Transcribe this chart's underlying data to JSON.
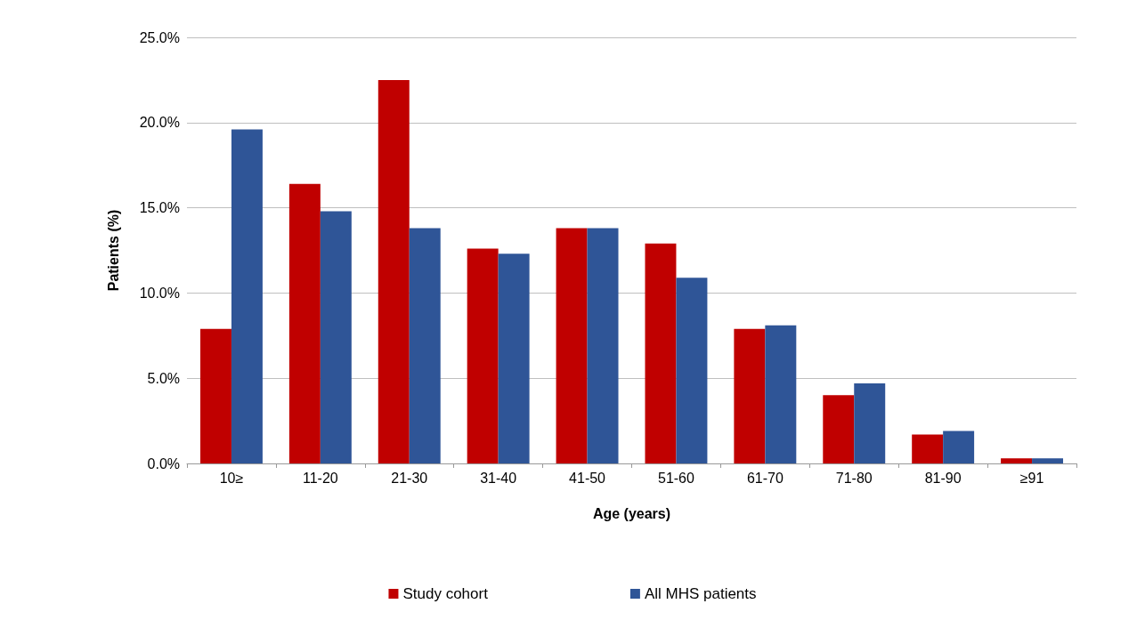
{
  "chart_data": {
    "type": "bar",
    "xlabel": "Age (years)",
    "ylabel": "Patients (%)",
    "categories": [
      "10≥",
      "11-20",
      "21-30",
      "31-40",
      "41-50",
      "51-60",
      "61-70",
      "71-80",
      "81-90",
      "≥91"
    ],
    "series": [
      {
        "name": "Study cohort",
        "color": "#c00000",
        "values": [
          7.9,
          16.4,
          22.5,
          12.6,
          13.8,
          12.9,
          7.9,
          4.0,
          1.7,
          0.3
        ]
      },
      {
        "name": "All MHS patients",
        "color": "#2f5597",
        "values": [
          19.6,
          14.8,
          13.8,
          12.3,
          13.8,
          10.9,
          8.1,
          4.7,
          1.9,
          0.3
        ]
      }
    ],
    "ylim": [
      0,
      25
    ],
    "yticks": [
      {
        "value": 0,
        "label": "0.0%"
      },
      {
        "value": 5,
        "label": "5.0%"
      },
      {
        "value": 10,
        "label": "10.0%"
      },
      {
        "value": 15,
        "label": "15.0%"
      },
      {
        "value": 20,
        "label": "20.0%"
      },
      {
        "value": 25,
        "label": "25.0%"
      }
    ],
    "grid": "y",
    "legend": "bottom"
  }
}
